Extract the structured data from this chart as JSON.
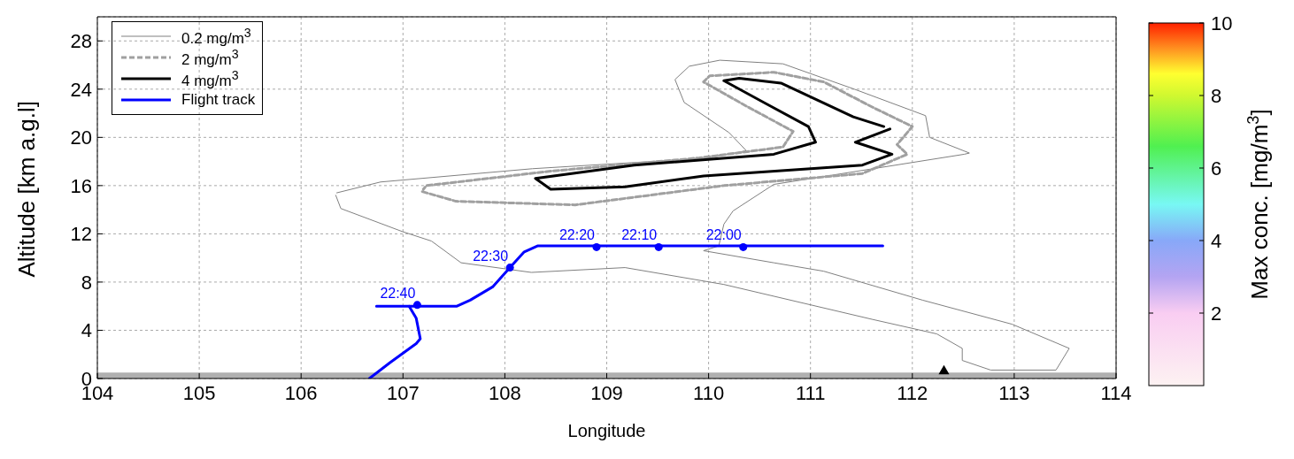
{
  "chart_data": {
    "type": "line",
    "xlabel": "Longitude",
    "ylabel": "Altitude [km a.g.l]",
    "clabel": "Max conc. [mg/m$^{3}$]",
    "clim": [
      0,
      10
    ],
    "cticks": [
      2,
      4,
      6,
      8,
      10
    ],
    "xlim": [
      104,
      114
    ],
    "xticks": [
      104,
      105,
      106,
      107,
      108,
      109,
      110,
      111,
      112,
      113,
      114
    ],
    "ylim": [
      0,
      30
    ],
    "yticks": [
      0,
      4,
      8,
      12,
      16,
      20,
      24,
      28
    ],
    "grid": true,
    "legend": "top left",
    "annotations": [
      {
        "text": "22:40",
        "x": 107.14,
        "y": 6.1
      },
      {
        "text": "22:30",
        "x": 108.05,
        "y": 9.2
      },
      {
        "text": "22:20",
        "x": 108.9,
        "y": 10.9
      },
      {
        "text": "22:10",
        "x": 109.51,
        "y": 10.9
      },
      {
        "text": "22:00",
        "x": 110.34,
        "y": 10.9
      }
    ],
    "bands": [
      {
        "axis": "y",
        "from": 0,
        "to": 0.5,
        "color": "#b0b0b0"
      }
    ],
    "series": [
      {
        "name": "0.2 mg/m$^{3}$",
        "color": "#808080",
        "line_style": "solid",
        "x": [
          106.35,
          106.78,
          108.27,
          110.02,
          110.37,
          110.2,
          109.76,
          109.67,
          109.81,
          110.11,
          110.73,
          111.43,
          112.13,
          112.17,
          112.56,
          112.51,
          110.64,
          110.24,
          110.15,
          110.1,
          109.95,
          110.64,
          111.13,
          112.1,
          112.98,
          113.54,
          113.41,
          112.77,
          112.49,
          112.49,
          112.24,
          111.61,
          110.15,
          109.18,
          108.26,
          107.57,
          107.28,
          106.99,
          106.39,
          106.34
        ],
        "values": [
          15.4,
          16.3,
          17.4,
          18.3,
          18.9,
          20.4,
          22.9,
          24.8,
          25.9,
          26.4,
          26.1,
          24.0,
          21.8,
          20.0,
          18.7,
          18.6,
          16.1,
          13.9,
          12.8,
          11.0,
          10.6,
          9.6,
          8.9,
          6.5,
          4.5,
          2.5,
          0.7,
          0.7,
          1.5,
          2.5,
          3.7,
          4.9,
          7.8,
          9.2,
          8.8,
          9.6,
          11.4,
          12.2,
          14.1,
          15.2
        ]
      },
      {
        "name": "2 mg/m$^{3}$",
        "color": "#a0a0a0",
        "line_style": "dashed",
        "x": [
          107.19,
          107.52,
          108.69,
          110.15,
          111.51,
          111.95,
          111.85,
          112.0,
          111.61,
          111.13,
          110.64,
          110.01,
          109.95,
          110.39,
          110.83,
          110.73,
          109.91,
          108.45,
          107.23,
          107.2
        ],
        "values": [
          15.5,
          14.7,
          14.4,
          16.0,
          17.0,
          18.6,
          19.4,
          20.9,
          22.5,
          24.6,
          25.4,
          25.1,
          24.6,
          22.5,
          20.5,
          19.2,
          18.3,
          17.2,
          16.0,
          15.7
        ]
      },
      {
        "name": "4 mg/m$^{3}$",
        "color": "#000000",
        "line_style": "solid",
        "x": [
          111.78,
          111.44,
          111.8,
          111.51,
          109.95,
          109.18,
          108.45,
          108.3,
          109.27,
          110.64,
          111.05,
          110.98,
          110.54,
          110.15,
          110.3,
          110.71,
          111.42,
          111.72
        ],
        "values": [
          20.7,
          19.6,
          18.6,
          17.7,
          16.8,
          15.9,
          15.7,
          16.6,
          17.7,
          18.6,
          19.6,
          20.9,
          22.9,
          24.7,
          24.9,
          24.5,
          21.7,
          20.9
        ]
      },
      {
        "name": "Flight track",
        "color": "#0000ff",
        "line_style": "solid",
        "x": [
          106.74,
          107.13,
          107.53,
          107.66,
          107.88,
          108.05,
          108.19,
          108.32,
          111.71
        ],
        "values": [
          6.0,
          6.0,
          6.0,
          6.5,
          7.6,
          9.2,
          10.5,
          11.0,
          11.0
        ]
      },
      {
        "color": "#0000ff",
        "line_style": "solid",
        "x": [
          107.06,
          107.13,
          107.17,
          107.13,
          106.87,
          106.67
        ],
        "values": [
          6.0,
          5.0,
          3.3,
          2.9,
          1.3,
          0
        ]
      },
      {
        "type": "scatter",
        "color": "#0000ff",
        "marker": "circle",
        "x": [
          107.14,
          108.05,
          108.9,
          109.51,
          110.34
        ],
        "values": [
          6.1,
          9.2,
          10.9,
          10.9,
          10.9
        ]
      },
      {
        "type": "scatter",
        "color": "#000000",
        "marker": "triangle",
        "x": [
          112.31
        ],
        "values": [
          0.6
        ]
      }
    ]
  }
}
